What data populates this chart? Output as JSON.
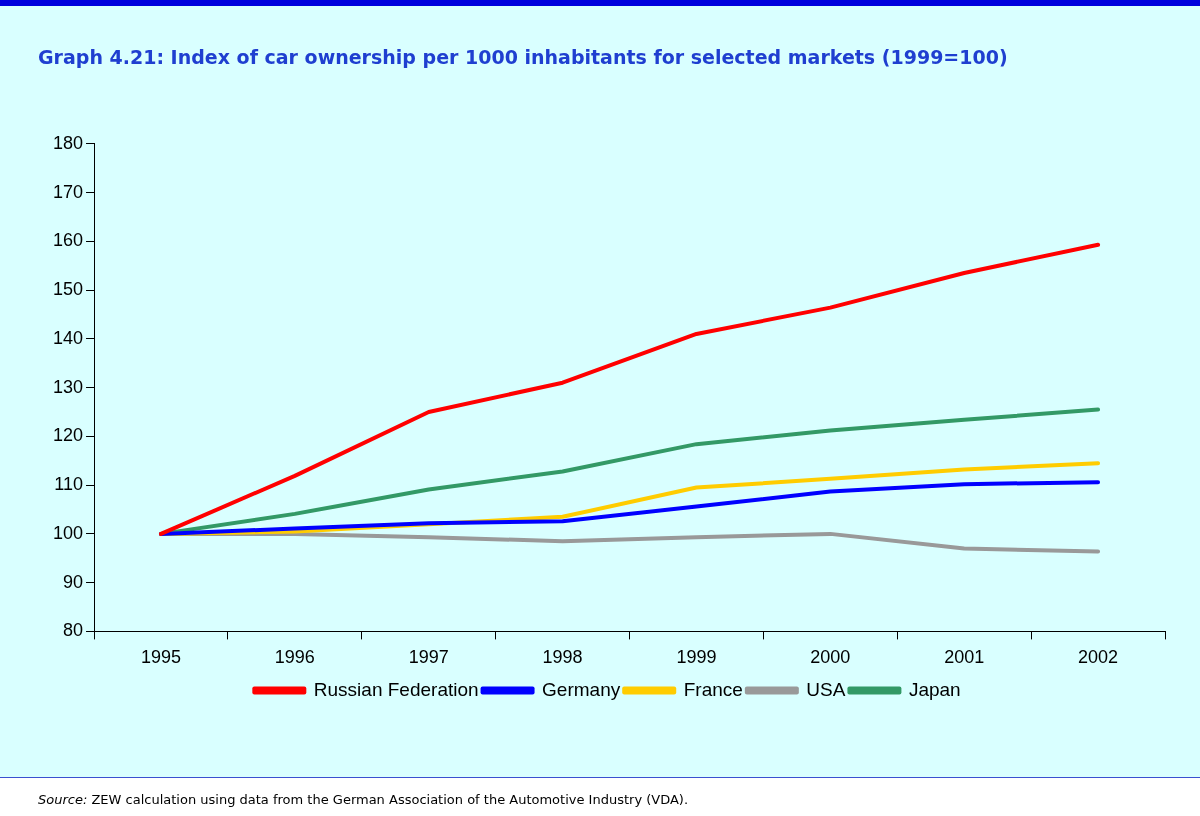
{
  "chart_data": {
    "type": "line",
    "title": "Graph 4.21: Index of car ownership per 1000 inhabitants for selected markets (1999=100)",
    "categories": [
      "1995",
      "1996",
      "1997",
      "1998",
      "1999",
      "2000",
      "2001",
      "2002"
    ],
    "series": [
      {
        "name": "Russian Federation",
        "color": "#ff0000",
        "values": [
          100,
          111.9,
          125,
          131,
          141,
          146.4,
          153.5,
          159.3
        ]
      },
      {
        "name": "Germany",
        "color": "#0000ff",
        "values": [
          100,
          101.1,
          102.2,
          102.6,
          105.6,
          108.7,
          110.2,
          110.6
        ]
      },
      {
        "name": "France",
        "color": "#ffcc00",
        "values": [
          100,
          100.5,
          102,
          103.5,
          109.5,
          111.3,
          113.2,
          114.5
        ]
      },
      {
        "name": "USA",
        "color": "#999999",
        "values": [
          100,
          100,
          99.3,
          98.5,
          99.3,
          100,
          97,
          96.4
        ]
      },
      {
        "name": "Japan",
        "color": "#339966",
        "values": [
          100,
          104.1,
          109.1,
          112.8,
          118.4,
          121.2,
          123.4,
          125.5
        ]
      }
    ],
    "ylim": [
      80,
      180
    ],
    "yticks": [
      80,
      90,
      100,
      110,
      120,
      130,
      140,
      150,
      160,
      170,
      180
    ],
    "grid": false,
    "legend": "bottom",
    "marker": "none",
    "line_style": "solid",
    "annotations": [
      "Source: ZEW calculation using data from the German Association of the Automotive Industry (VDA)."
    ]
  }
}
